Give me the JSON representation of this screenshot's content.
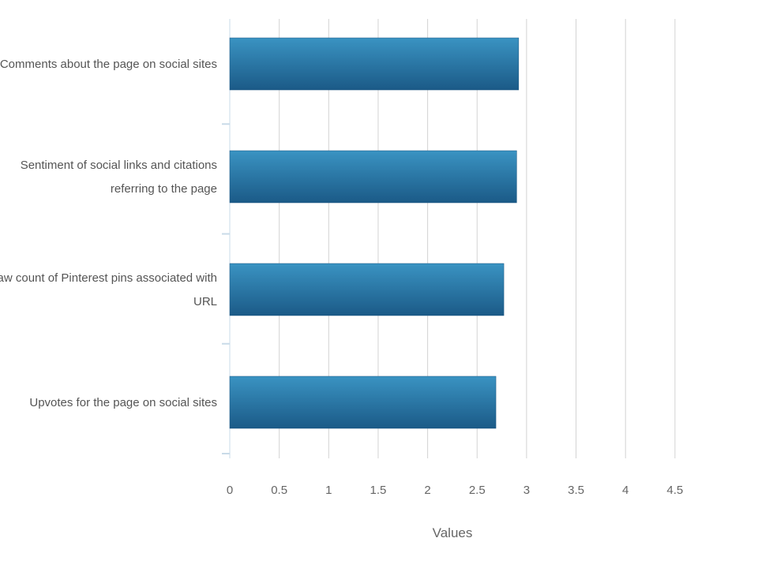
{
  "chart_data": {
    "type": "bar",
    "orientation": "horizontal",
    "categories": [
      "Comments about the page on social sites",
      "Sentiment of social links and citations referring to the page",
      "Raw count of Pinterest pins associated with URL",
      "Upvotes for the page on social sites"
    ],
    "category_lines": [
      [
        "Comments about the page on social sites"
      ],
      [
        "Sentiment of social links and citations",
        "referring to the page"
      ],
      [
        "Raw count of Pinterest pins associated with",
        "URL"
      ],
      [
        "Upvotes for the page on social sites"
      ]
    ],
    "values": [
      2.92,
      2.9,
      2.77,
      2.69
    ],
    "xlabel": "Values",
    "ylabel": "",
    "xlim": [
      0,
      4.5
    ],
    "x_ticks": [
      "0",
      "0.5",
      "1",
      "1.5",
      "2",
      "2.5",
      "3",
      "3.5",
      "4",
      "4.5"
    ],
    "grid": "vertical",
    "legend": "none",
    "colors": {
      "bar_top": "#3a93c2",
      "bar_bottom": "#1b5a87",
      "bar_edge": "#1a5580",
      "grid": "#d3d3d3",
      "axis": "#c9dbe8"
    }
  }
}
